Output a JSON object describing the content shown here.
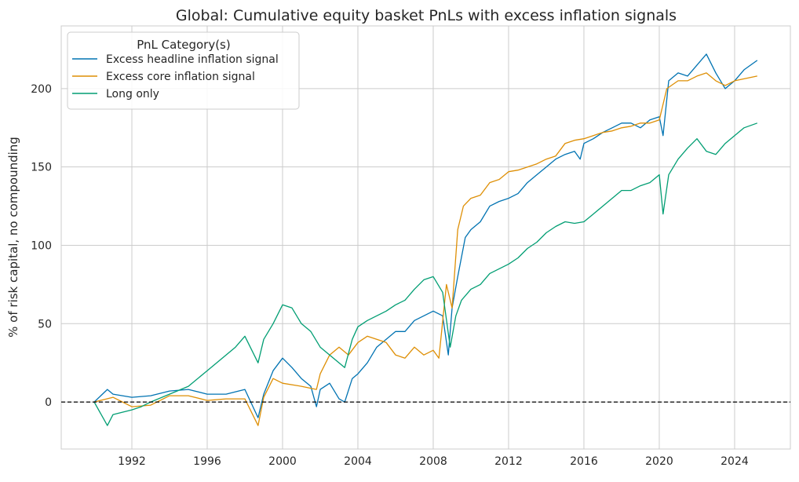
{
  "chart_data": {
    "type": "line",
    "title": "Global: Cumulative equity basket PnLs with excess inflation signals",
    "xlabel": "",
    "ylabel": "% of risk capital, no compounding",
    "xlim": [
      1988.25,
      2026.96
    ],
    "ylim": [
      -30,
      240
    ],
    "xticks": [
      1992,
      1996,
      2000,
      2004,
      2008,
      2012,
      2016,
      2020,
      2024
    ],
    "yticks": [
      0,
      50,
      100,
      150,
      200
    ],
    "grid": true,
    "zero_line": {
      "y": 0,
      "style": "dashed",
      "color": "#000000"
    },
    "legend": {
      "title": "PnL Category(s)",
      "placement": "top-left"
    },
    "series": [
      {
        "name": "Excess headline inflation signal",
        "color": "#0173b2",
        "x": [
          1990.0,
          1990.7,
          1991,
          1992,
          1993,
          1994,
          1995,
          1996,
          1997,
          1998,
          1998.7,
          1999,
          1999.5,
          2000,
          2000.5,
          2001,
          2001.5,
          2001.8,
          2002,
          2002.5,
          2003,
          2003.3,
          2003.7,
          2004,
          2004.5,
          2005,
          2005.5,
          2006,
          2006.5,
          2007,
          2007.5,
          2008,
          2008.5,
          2008.8,
          2009,
          2009.3,
          2009.7,
          2010,
          2010.5,
          2011,
          2011.5,
          2012,
          2012.5,
          2013,
          2013.5,
          2014,
          2014.5,
          2015,
          2015.5,
          2015.8,
          2016,
          2016.5,
          2017,
          2017.5,
          2018,
          2018.5,
          2019,
          2019.5,
          2020.0,
          2020.2,
          2020.5,
          2021,
          2021.5,
          2022,
          2022.5,
          2023,
          2023.5,
          2024,
          2024.5,
          2025.2
        ],
        "y": [
          0,
          8,
          5,
          3,
          4,
          7,
          8,
          5,
          5,
          8,
          -10,
          5,
          20,
          28,
          22,
          15,
          10,
          -3,
          8,
          12,
          2,
          0,
          15,
          18,
          25,
          35,
          40,
          45,
          45,
          52,
          55,
          58,
          55,
          30,
          60,
          80,
          105,
          110,
          115,
          125,
          128,
          130,
          133,
          140,
          145,
          150,
          155,
          158,
          160,
          155,
          165,
          168,
          172,
          175,
          178,
          178,
          175,
          180,
          182,
          170,
          205,
          210,
          208,
          215,
          222,
          210,
          200,
          205,
          212,
          218
        ]
      },
      {
        "name": "Excess core inflation signal",
        "color": "#de8f05",
        "x": [
          1990,
          1991,
          1992,
          1993,
          1994,
          1995,
          1996,
          1997,
          1998,
          1998.7,
          1999,
          1999.5,
          2000,
          2001,
          2001.8,
          2002,
          2002.5,
          2003,
          2003.5,
          2004,
          2004.5,
          2005,
          2005.5,
          2006,
          2006.5,
          2007,
          2007.5,
          2008,
          2008.3,
          2008.7,
          2009,
          2009.3,
          2009.6,
          2010,
          2010.5,
          2011,
          2011.5,
          2012,
          2012.5,
          2013,
          2013.5,
          2014,
          2014.5,
          2015,
          2015.5,
          2016,
          2016.5,
          2017,
          2017.5,
          2018,
          2018.5,
          2019,
          2019.5,
          2020,
          2020.4,
          2021,
          2021.5,
          2022,
          2022.5,
          2023,
          2023.5,
          2024,
          2025.2
        ],
        "y": [
          0,
          3,
          -3,
          -2,
          4,
          4,
          1,
          2,
          2,
          -15,
          3,
          15,
          12,
          10,
          8,
          18,
          30,
          35,
          30,
          38,
          42,
          40,
          38,
          30,
          28,
          35,
          30,
          33,
          28,
          75,
          60,
          110,
          125,
          130,
          132,
          140,
          142,
          147,
          148,
          150,
          152,
          155,
          157,
          165,
          167,
          168,
          170,
          172,
          173,
          175,
          176,
          178,
          178,
          180,
          200,
          205,
          205,
          208,
          210,
          205,
          202,
          205,
          208
        ]
      },
      {
        "name": "Long only",
        "color": "#029e73",
        "x": [
          1990,
          1990.7,
          1991,
          1992,
          1992.5,
          1993,
          1994,
          1995,
          1996,
          1996.5,
          1997,
          1997.5,
          1998,
          1998.7,
          1999,
          1999.5,
          2000,
          2000.5,
          2001,
          2001.5,
          2002,
          2002.5,
          2003,
          2003.3,
          2003.7,
          2004,
          2004.5,
          2005,
          2005.5,
          2006,
          2006.5,
          2007,
          2007.5,
          2008,
          2008.5,
          2008.9,
          2009.2,
          2009.5,
          2010,
          2010.5,
          2011,
          2011.5,
          2012,
          2012.5,
          2013,
          2013.5,
          2014,
          2014.5,
          2015,
          2015.5,
          2016,
          2016.5,
          2017,
          2017.5,
          2018,
          2018.5,
          2019,
          2019.5,
          2020,
          2020.2,
          2020.5,
          2021,
          2021.5,
          2022,
          2022.5,
          2023,
          2023.5,
          2024,
          2024.5,
          2025.2
        ],
        "y": [
          0,
          -15,
          -8,
          -5,
          -3,
          0,
          5,
          10,
          20,
          25,
          30,
          35,
          42,
          25,
          40,
          50,
          62,
          60,
          50,
          45,
          35,
          30,
          25,
          22,
          40,
          48,
          52,
          55,
          58,
          62,
          65,
          72,
          78,
          80,
          70,
          35,
          55,
          65,
          72,
          75,
          82,
          85,
          88,
          92,
          98,
          102,
          108,
          112,
          115,
          114,
          115,
          120,
          125,
          130,
          135,
          135,
          138,
          140,
          145,
          120,
          145,
          155,
          162,
          168,
          160,
          158,
          165,
          170,
          175,
          178
        ]
      }
    ]
  }
}
